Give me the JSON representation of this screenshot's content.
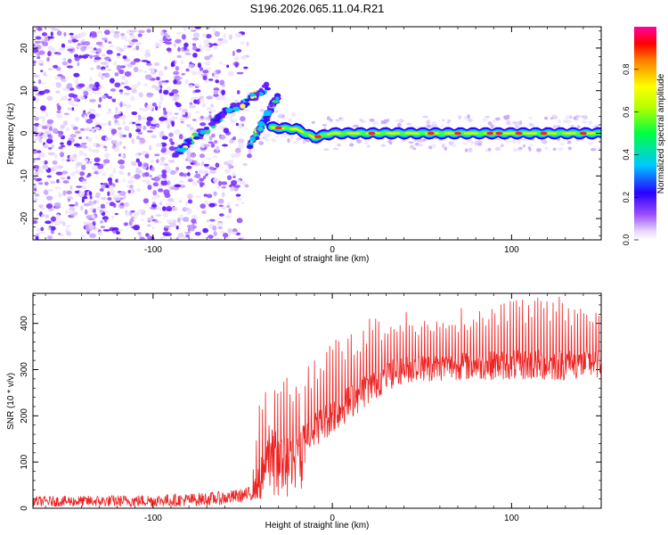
{
  "title": "S196.2026.065.11.04.R21",
  "chart_data": [
    {
      "type": "heatmap",
      "title": "S196.2026.065.11.04.R21",
      "xlabel": "Height of straight line (km)",
      "ylabel": "Frequency (Hz)",
      "xlim": [
        -167,
        150
      ],
      "ylim": [
        -25,
        25
      ],
      "xticks": [
        -100,
        0,
        100
      ],
      "yticks": [
        -20,
        -10,
        0,
        10,
        20
      ],
      "colorbar": {
        "label": "Normalized spectral amplitude",
        "range": [
          0,
          1
        ],
        "ticks": [
          0.0,
          0.2,
          0.4,
          0.6,
          0.8
        ],
        "tick_labels": [
          "0.0",
          "0.2",
          "0.4",
          "0.6",
          "0.8"
        ],
        "colormap": "rainbow (white-violet-blue-cyan-green-yellow-red-magenta)"
      },
      "features": {
        "noise_region_x": [
          -167,
          -55
        ],
        "ascending_track": {
          "x": [
            -88,
            -80,
            -70,
            -62,
            -55,
            -48,
            -40,
            -36
          ],
          "y": [
            -5,
            -2,
            1,
            4,
            6,
            7,
            10,
            11
          ]
        },
        "lower_branch": {
          "x": [
            -46,
            -42,
            -38,
            -34,
            -30
          ],
          "y": [
            -3,
            0,
            3,
            6,
            9
          ]
        },
        "carrier_line": {
          "x": [
            -40,
            -20,
            -10,
            0,
            50,
            100,
            150
          ],
          "y": [
            1.5,
            1,
            -1,
            0,
            0,
            0,
            0
          ]
        }
      }
    },
    {
      "type": "line",
      "xlabel": "Height of straight line (km)",
      "ylabel": "SNR (10 * v/v)",
      "xlim": [
        -167,
        150
      ],
      "ylim": [
        0,
        465
      ],
      "xticks": [
        -100,
        0,
        100
      ],
      "yticks": [
        0,
        100,
        200,
        300,
        400
      ],
      "series": [
        {
          "name": "SNR",
          "color": "#ee2222",
          "envelope": {
            "x": [
              -167,
              -140,
              -110,
              -80,
              -60,
              -50,
              -45,
              -40,
              -35,
              -30,
              -25,
              -20,
              -10,
              0,
              10,
              20,
              30,
              40,
              60,
              80,
              100,
              120,
              150
            ],
            "base": [
              15,
              15,
              16,
              18,
              22,
              28,
              30,
              60,
              150,
              130,
              110,
              140,
              170,
              200,
              230,
              260,
              285,
              300,
              305,
              308,
              310,
              310,
              312
            ],
            "peak": [
              40,
              42,
              45,
              50,
              55,
              62,
              70,
              260,
              320,
              280,
              300,
              310,
              340,
              380,
              400,
              420,
              430,
              430,
              440,
              445,
              455,
              465,
              450
            ]
          }
        }
      ]
    }
  ]
}
